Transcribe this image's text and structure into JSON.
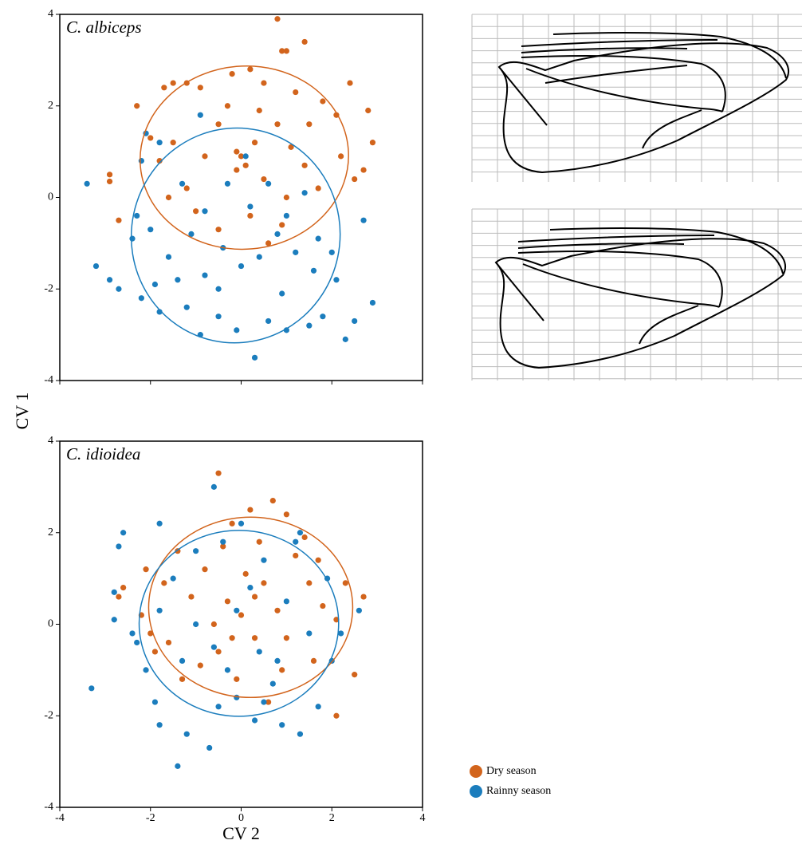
{
  "chart_data": [
    {
      "type": "scatter",
      "title": "C. albiceps",
      "ylabel": "CV 1",
      "xlim": [
        -4,
        4
      ],
      "ylim": [
        -4,
        4
      ],
      "xticks": [
        -4,
        -2,
        0,
        2,
        4
      ],
      "yticks": [
        -4,
        -2,
        0,
        2,
        4
      ],
      "xtick_labels": false,
      "series": [
        {
          "color": "#d2641c",
          "x": [
            0.8,
            0.9,
            1.0,
            1.4,
            2.4,
            2.8,
            2.9,
            2.7,
            -2.9,
            -2.9,
            -2.7,
            -2.3,
            -1.7,
            -1.5,
            -1.2,
            -0.9,
            -0.2,
            0.2,
            0.5,
            1.2,
            1.8,
            2.1,
            -2.0,
            -1.8,
            -1.5,
            -1.2,
            -0.8,
            -0.5,
            -0.1,
            0.0,
            0.1,
            -0.1,
            0.3,
            0.5,
            0.8,
            1.1,
            1.4,
            1.7,
            2.2,
            2.5,
            -1.0,
            -0.5,
            0.2,
            0.6,
            1.0,
            -1.6,
            0.9,
            1.5,
            -0.3,
            0.4
          ],
          "y": [
            3.9,
            3.2,
            3.2,
            3.4,
            2.5,
            1.9,
            1.2,
            0.6,
            0.5,
            0.35,
            -0.5,
            2.0,
            2.4,
            2.5,
            2.5,
            2.4,
            2.7,
            2.8,
            2.5,
            2.3,
            2.1,
            1.8,
            1.3,
            0.8,
            1.2,
            0.2,
            0.9,
            1.6,
            1.0,
            0.9,
            0.7,
            0.6,
            1.2,
            0.4,
            1.6,
            1.1,
            0.7,
            0.2,
            0.9,
            0.4,
            -0.3,
            -0.7,
            -0.4,
            -1.0,
            0.0,
            0.0,
            -0.6,
            1.6,
            2.0,
            1.9
          ],
          "ellipse": {
            "cx": 0.07,
            "cy": 0.87,
            "rx": 2.3,
            "ry": 2.0,
            "angle": -5
          }
        },
        {
          "color": "#1b7dbd",
          "x": [
            -3.4,
            -3.2,
            -2.9,
            -2.7,
            -2.2,
            -1.8,
            -1.4,
            -1.2,
            -0.9,
            -0.5,
            -0.1,
            0.3,
            0.6,
            1.0,
            1.5,
            1.8,
            2.3,
            2.5,
            2.9,
            2.7,
            2.1,
            1.6,
            1.2,
            0.8,
            0.4,
            0.0,
            -0.4,
            -0.8,
            -1.1,
            -1.6,
            -2.0,
            -2.3,
            -2.2,
            -2.1,
            -1.8,
            -1.3,
            -0.9,
            -0.8,
            -0.3,
            0.2,
            0.6,
            1.0,
            1.4,
            1.7,
            2.0,
            -0.5,
            0.9,
            -1.9,
            -2.4,
            0.1
          ],
          "y": [
            0.3,
            -1.5,
            -1.8,
            -2.0,
            -2.2,
            -2.5,
            -1.8,
            -2.4,
            -3.0,
            -2.6,
            -2.9,
            -3.5,
            -2.7,
            -2.9,
            -2.8,
            -2.6,
            -3.1,
            -2.7,
            -2.3,
            -0.5,
            -1.8,
            -1.6,
            -1.2,
            -0.8,
            -1.3,
            -1.5,
            -1.1,
            -1.7,
            -0.8,
            -1.3,
            -0.7,
            -0.4,
            0.8,
            1.4,
            1.2,
            0.3,
            1.8,
            -0.3,
            0.3,
            -0.2,
            0.3,
            -0.4,
            0.1,
            -0.9,
            -1.2,
            -2.0,
            -2.1,
            -1.9,
            -0.9,
            0.9
          ],
          "ellipse": {
            "cx": -0.12,
            "cy": -0.83,
            "rx": 2.3,
            "ry": 2.35,
            "angle": 12
          }
        }
      ]
    },
    {
      "type": "scatter",
      "title": "C. idioidea",
      "xlabel": "CV 2",
      "xlim": [
        -4,
        4
      ],
      "ylim": [
        -4,
        4
      ],
      "xticks": [
        -4,
        -2,
        0,
        2,
        4
      ],
      "yticks": [
        -4,
        -2,
        0,
        2,
        4
      ],
      "legend": "lower right",
      "series": [
        {
          "name": "Dry season",
          "color": "#d2641c",
          "x": [
            -0.5,
            0.7,
            0.2,
            1.0,
            -0.2,
            -1.4,
            -2.1,
            -2.6,
            -2.7,
            -2.2,
            -2.0,
            -1.6,
            -1.3,
            -0.9,
            -0.6,
            -0.3,
            0.0,
            0.3,
            0.5,
            0.8,
            1.2,
            1.5,
            1.8,
            2.1,
            2.7,
            2.5,
            2.1,
            1.6,
            1.0,
            0.6,
            -0.1,
            -0.5,
            -1.1,
            -1.7,
            -0.8,
            0.1,
            0.4,
            1.4,
            1.7,
            2.3,
            -0.4,
            0.9,
            -1.9,
            -0.2,
            0.3
          ],
          "y": [
            3.3,
            2.7,
            2.5,
            2.4,
            2.2,
            1.6,
            1.2,
            0.8,
            0.6,
            0.2,
            -0.2,
            -0.4,
            -1.2,
            -0.9,
            0.0,
            0.5,
            0.2,
            -0.3,
            0.9,
            0.3,
            1.5,
            0.9,
            0.4,
            0.1,
            0.6,
            -1.1,
            -2.0,
            -0.8,
            -0.3,
            -1.7,
            -1.2,
            -0.6,
            0.6,
            0.9,
            1.2,
            1.1,
            1.8,
            1.9,
            1.4,
            0.9,
            1.7,
            -1.0,
            -0.6,
            -0.3,
            0.6
          ],
          "ellipse": {
            "cx": 0.21,
            "cy": 0.37,
            "rx": 2.25,
            "ry": 1.97,
            "angle": 0
          }
        },
        {
          "name": "Rainny season",
          "color": "#1b7dbd",
          "x": [
            -3.3,
            -2.8,
            -2.8,
            -2.6,
            -2.7,
            -2.3,
            -2.4,
            -2.1,
            -1.9,
            -1.8,
            -1.8,
            -1.4,
            -1.2,
            -0.7,
            -0.6,
            -0.5,
            -0.1,
            0.3,
            0.5,
            0.9,
            1.3,
            1.7,
            2.0,
            2.6,
            2.2,
            1.9,
            1.3,
            1.2,
            0.5,
            0.0,
            -0.4,
            -1.0,
            -1.5,
            -1.8,
            -1.0,
            -0.6,
            -0.1,
            0.4,
            0.8,
            1.0,
            1.5,
            -0.3,
            0.2,
            -1.3,
            0.7
          ],
          "y": [
            -1.4,
            0.1,
            0.7,
            2.0,
            1.7,
            -0.4,
            -0.2,
            -1.0,
            -1.7,
            -2.2,
            2.2,
            -3.1,
            -2.4,
            -2.7,
            3.0,
            -1.8,
            -1.6,
            -2.1,
            -1.7,
            -2.2,
            -2.4,
            -1.8,
            -0.8,
            0.3,
            -0.2,
            1.0,
            2.0,
            1.8,
            1.4,
            2.2,
            1.8,
            1.6,
            1.0,
            0.3,
            0.0,
            -0.5,
            0.3,
            -0.6,
            -0.8,
            0.5,
            -0.2,
            -1.0,
            0.8,
            -0.8,
            -1.3
          ],
          "ellipse": {
            "cx": -0.05,
            "cy": 0.02,
            "rx": 2.2,
            "ry": 2.03,
            "angle": 0
          }
        }
      ]
    }
  ]
}
